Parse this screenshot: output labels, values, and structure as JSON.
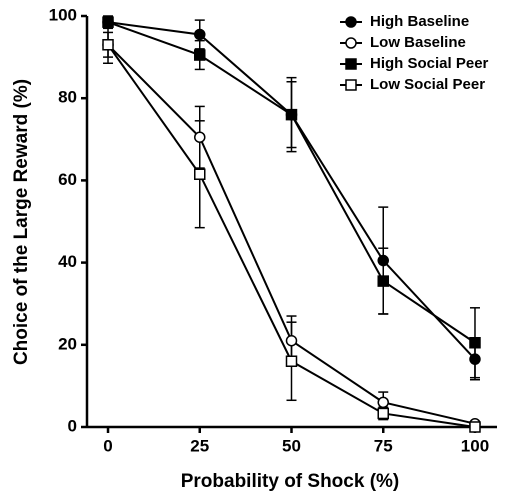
{
  "chart_data": {
    "type": "line",
    "xlabel": "Probability of Shock (%)",
    "ylabel": "Choice of the Large Reward (%)",
    "x": [
      0,
      25,
      50,
      75,
      100
    ],
    "xlim": [
      -6,
      106
    ],
    "xticks": [
      0,
      25,
      50,
      75,
      100
    ],
    "ylim": [
      0,
      100
    ],
    "yticks": [
      0,
      20,
      40,
      60,
      80,
      100
    ],
    "legend": "upper right",
    "series": [
      {
        "name": "High Baseline",
        "color": "#000000",
        "marker": "filled-circle",
        "values": [
          98.5,
          95.5,
          76,
          40.5,
          16.5
        ],
        "errors": [
          1,
          3.5,
          9,
          13,
          5
        ]
      },
      {
        "name": "Low Baseline",
        "color": "#000000",
        "marker": "open-circle",
        "values": [
          93,
          70.5,
          21,
          6,
          0.8
        ],
        "errors": [
          3,
          7.5,
          6,
          2.5,
          0.5
        ]
      },
      {
        "name": "High Social Peer",
        "color": "#000000",
        "marker": "filled-square",
        "values": [
          98.5,
          90.5,
          76,
          35.5,
          20.5
        ],
        "errors": [
          1.5,
          3.5,
          8,
          8,
          8.5
        ]
      },
      {
        "name": "Low Social Peer",
        "color": "#000000",
        "marker": "open-square",
        "values": [
          93,
          61.5,
          16,
          3.3,
          0
        ],
        "errors": [
          4.5,
          13,
          9.5,
          1.5,
          0
        ]
      }
    ]
  }
}
